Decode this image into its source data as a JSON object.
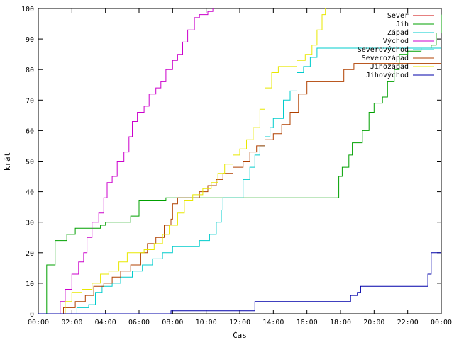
{
  "chart_data": {
    "type": "line",
    "title": "",
    "xlabel": "Čas",
    "ylabel": "krát",
    "xlim": [
      0,
      24
    ],
    "ylim": [
      0,
      100
    ],
    "x_ticks": [
      {
        "value": 0,
        "label": "00:00"
      },
      {
        "value": 2,
        "label": "02:00"
      },
      {
        "value": 4,
        "label": "04:00"
      },
      {
        "value": 6,
        "label": "06:00"
      },
      {
        "value": 8,
        "label": "08:00"
      },
      {
        "value": 10,
        "label": "10:00"
      },
      {
        "value": 12,
        "label": "12:00"
      },
      {
        "value": 14,
        "label": "14:00"
      },
      {
        "value": 16,
        "label": "16:00"
      },
      {
        "value": 18,
        "label": "18:00"
      },
      {
        "value": 20,
        "label": "20:00"
      },
      {
        "value": 22,
        "label": "22:00"
      },
      {
        "value": 24,
        "label": "00:00"
      }
    ],
    "y_ticks": [
      0,
      10,
      20,
      30,
      40,
      50,
      60,
      70,
      80,
      90,
      100
    ],
    "grid": false,
    "legend_position": "top-right",
    "series": [
      {
        "name": "Sever",
        "color": "#cc0000",
        "points": [
          [
            0,
            0
          ]
        ]
      },
      {
        "name": "Jih",
        "color": "#00a000",
        "points": [
          [
            0,
            0
          ],
          [
            0.5,
            16
          ],
          [
            1.0,
            24
          ],
          [
            1.7,
            26
          ],
          [
            2.2,
            28
          ],
          [
            3.0,
            28
          ],
          [
            3.7,
            29
          ],
          [
            4.0,
            30
          ],
          [
            5.2,
            30
          ],
          [
            5.5,
            32
          ],
          [
            6.0,
            37
          ],
          [
            7.5,
            37
          ],
          [
            7.6,
            38
          ],
          [
            17.5,
            38
          ],
          [
            17.9,
            45
          ],
          [
            18.1,
            48
          ],
          [
            18.5,
            52
          ],
          [
            18.7,
            56
          ],
          [
            19.3,
            60
          ],
          [
            19.7,
            66
          ],
          [
            20.0,
            69
          ],
          [
            20.5,
            71
          ],
          [
            20.8,
            76
          ],
          [
            21.2,
            80
          ],
          [
            21.5,
            85
          ],
          [
            22.0,
            86
          ],
          [
            22.8,
            87
          ],
          [
            23.4,
            88
          ],
          [
            23.7,
            92
          ],
          [
            24.0,
            98
          ]
        ]
      },
      {
        "name": "Západ",
        "color": "#00cccc",
        "points": [
          [
            0,
            0
          ],
          [
            2.1,
            0
          ],
          [
            2.3,
            2
          ],
          [
            3.0,
            3
          ],
          [
            3.4,
            7
          ],
          [
            3.8,
            9
          ],
          [
            4.4,
            10
          ],
          [
            4.9,
            12
          ],
          [
            5.6,
            14
          ],
          [
            6.2,
            16
          ],
          [
            6.8,
            18
          ],
          [
            7.4,
            20
          ],
          [
            8.0,
            22
          ],
          [
            9.0,
            22
          ],
          [
            9.6,
            24
          ],
          [
            10.2,
            26
          ],
          [
            10.6,
            30
          ],
          [
            10.9,
            34
          ],
          [
            11.0,
            38
          ],
          [
            11.8,
            38
          ],
          [
            12.2,
            44
          ],
          [
            12.6,
            48
          ],
          [
            12.9,
            52
          ],
          [
            13.2,
            55
          ],
          [
            13.5,
            58
          ],
          [
            13.8,
            61
          ],
          [
            14.0,
            64
          ],
          [
            14.6,
            70
          ],
          [
            15.0,
            73
          ],
          [
            15.4,
            79
          ],
          [
            15.8,
            81
          ],
          [
            16.2,
            84
          ],
          [
            16.6,
            87
          ],
          [
            24.0,
            87
          ]
        ]
      },
      {
        "name": "Východ",
        "color": "#cc00cc",
        "points": [
          [
            0,
            0
          ],
          [
            1.1,
            0
          ],
          [
            1.3,
            4
          ],
          [
            1.6,
            8
          ],
          [
            2.0,
            13
          ],
          [
            2.4,
            17
          ],
          [
            2.7,
            20
          ],
          [
            2.9,
            25
          ],
          [
            3.2,
            30
          ],
          [
            3.6,
            33
          ],
          [
            3.9,
            38
          ],
          [
            4.1,
            43
          ],
          [
            4.4,
            45
          ],
          [
            4.7,
            50
          ],
          [
            5.1,
            53
          ],
          [
            5.4,
            58
          ],
          [
            5.6,
            63
          ],
          [
            5.9,
            66
          ],
          [
            6.3,
            68
          ],
          [
            6.6,
            72
          ],
          [
            7.0,
            74
          ],
          [
            7.3,
            76
          ],
          [
            7.6,
            80
          ],
          [
            8.0,
            83
          ],
          [
            8.3,
            85
          ],
          [
            8.6,
            89
          ],
          [
            8.9,
            93
          ],
          [
            9.3,
            97
          ],
          [
            9.6,
            98
          ],
          [
            10.1,
            99
          ],
          [
            10.4,
            100
          ]
        ]
      },
      {
        "name": "Severovýchod",
        "color": "#00cccc",
        "points": [
          [
            0,
            0
          ]
        ]
      },
      {
        "name": "Severozápad",
        "color": "#b04000",
        "points": [
          [
            0,
            0
          ],
          [
            1.3,
            0
          ],
          [
            1.5,
            2
          ],
          [
            2.2,
            4
          ],
          [
            2.8,
            6
          ],
          [
            3.3,
            9
          ],
          [
            3.9,
            10
          ],
          [
            4.4,
            12
          ],
          [
            4.9,
            14
          ],
          [
            5.5,
            16
          ],
          [
            6.1,
            20
          ],
          [
            6.5,
            23
          ],
          [
            7.0,
            25
          ],
          [
            7.5,
            29
          ],
          [
            7.9,
            31
          ],
          [
            8.0,
            36
          ],
          [
            8.3,
            38
          ],
          [
            9.1,
            38
          ],
          [
            9.6,
            40
          ],
          [
            10.1,
            42
          ],
          [
            10.6,
            44
          ],
          [
            11.0,
            46
          ],
          [
            11.6,
            48
          ],
          [
            12.2,
            50
          ],
          [
            12.6,
            53
          ],
          [
            13.0,
            55
          ],
          [
            13.5,
            57
          ],
          [
            14.0,
            59
          ],
          [
            14.5,
            62
          ],
          [
            15.0,
            66
          ],
          [
            15.5,
            72
          ],
          [
            16.0,
            76
          ],
          [
            17.8,
            76
          ],
          [
            18.2,
            80
          ],
          [
            18.8,
            82
          ],
          [
            24.0,
            82
          ]
        ]
      },
      {
        "name": "Jihozápad",
        "color": "#e8e800",
        "points": [
          [
            0,
            0
          ],
          [
            1.4,
            0
          ],
          [
            1.6,
            4
          ],
          [
            2.0,
            7
          ],
          [
            2.6,
            8
          ],
          [
            3.2,
            10
          ],
          [
            3.7,
            13
          ],
          [
            4.2,
            14
          ],
          [
            4.8,
            17
          ],
          [
            5.3,
            20
          ],
          [
            6.3,
            21
          ],
          [
            6.9,
            23
          ],
          [
            7.4,
            26
          ],
          [
            7.8,
            29
          ],
          [
            8.3,
            33
          ],
          [
            8.7,
            37
          ],
          [
            9.2,
            39
          ],
          [
            9.8,
            41
          ],
          [
            10.3,
            43
          ],
          [
            10.7,
            46
          ],
          [
            11.1,
            49
          ],
          [
            11.6,
            52
          ],
          [
            12.0,
            54
          ],
          [
            12.4,
            57
          ],
          [
            12.8,
            61
          ],
          [
            13.2,
            67
          ],
          [
            13.5,
            74
          ],
          [
            13.9,
            79
          ],
          [
            14.3,
            81
          ],
          [
            15.0,
            81
          ],
          [
            15.4,
            83
          ],
          [
            15.9,
            85
          ],
          [
            16.3,
            88
          ],
          [
            16.6,
            93
          ],
          [
            16.9,
            98
          ],
          [
            17.1,
            100
          ]
        ]
      },
      {
        "name": "Jihovýchod",
        "color": "#0000aa",
        "points": [
          [
            0,
            0
          ],
          [
            7.8,
            0
          ],
          [
            7.9,
            1
          ],
          [
            12.8,
            1
          ],
          [
            12.9,
            4
          ],
          [
            18.5,
            4
          ],
          [
            18.6,
            6
          ],
          [
            19.0,
            7
          ],
          [
            19.2,
            9
          ],
          [
            22.9,
            9
          ],
          [
            23.2,
            13
          ],
          [
            23.4,
            20
          ],
          [
            24.0,
            20
          ]
        ]
      }
    ]
  }
}
